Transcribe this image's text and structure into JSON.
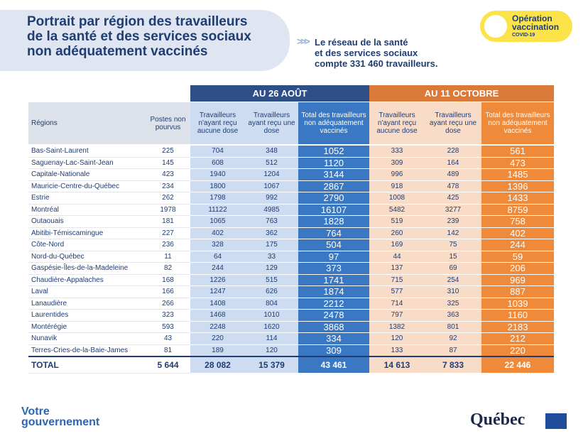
{
  "header": {
    "title": [
      "Portrait par région des travailleurs",
      "de la santé et des services sociaux",
      "non adéquatement vaccinés"
    ],
    "note": [
      "Le réseau de la santé",
      "et des services sociaux",
      "compte 331 460 travailleurs."
    ]
  },
  "badge": {
    "title": [
      "Opération",
      "vaccination"
    ],
    "subtitle": "COVID-19"
  },
  "table": {
    "groups": [
      "AU 26 AOÛT",
      "AU 11 OCTOBRE"
    ],
    "columns": [
      "Régions",
      "Postes non pourvus",
      "Travailleurs n'ayant reçu aucune dose",
      "Travailleurs ayant reçu une dose",
      "Total des travailleurs non adéquatement vaccinés",
      "Travailleurs n'ayant reçu aucune dose",
      "Travailleurs ayant reçu une dose",
      "Total des travailleurs non adéquatement vaccinés"
    ],
    "rows": [
      [
        "Bas-Saint-Laurent",
        225,
        704,
        348,
        1052,
        333,
        228,
        561
      ],
      [
        "Saguenay-Lac-Saint-Jean",
        145,
        608,
        512,
        1120,
        309,
        164,
        473
      ],
      [
        "Capitale-Nationale",
        423,
        1940,
        1204,
        3144,
        996,
        489,
        1485
      ],
      [
        "Mauricie-Centre-du-Québec",
        234,
        1800,
        1067,
        2867,
        918,
        478,
        1396
      ],
      [
        "Estrie",
        262,
        1798,
        992,
        2790,
        1008,
        425,
        1433
      ],
      [
        "Montréal",
        1978,
        11122,
        4985,
        16107,
        5482,
        3277,
        8759
      ],
      [
        "Outaouais",
        181,
        1065,
        763,
        1828,
        519,
        239,
        758
      ],
      [
        "Abitibi-Témiscamingue",
        227,
        402,
        362,
        764,
        260,
        142,
        402
      ],
      [
        "Côte-Nord",
        236,
        328,
        175,
        504,
        169,
        75,
        244
      ],
      [
        "Nord-du-Québec",
        11,
        64,
        33,
        97,
        44,
        15,
        59
      ],
      [
        "Gaspésie-Îles-de-la-Madeleine",
        82,
        244,
        129,
        373,
        137,
        69,
        206
      ],
      [
        "Chaudière-Appalaches",
        168,
        1226,
        515,
        1741,
        715,
        254,
        969
      ],
      [
        "Laval",
        166,
        1247,
        626,
        1874,
        577,
        310,
        887
      ],
      [
        "Lanaudière",
        266,
        1408,
        804,
        2212,
        714,
        325,
        1039
      ],
      [
        "Laurentides",
        323,
        1468,
        1010,
        2478,
        797,
        363,
        1160
      ],
      [
        "Montérégie",
        593,
        2248,
        1620,
        3868,
        1382,
        801,
        2183
      ],
      [
        "Nunavik",
        43,
        220,
        114,
        334,
        120,
        92,
        212
      ],
      [
        "Terres-Cries-de-la-Baie-James",
        81,
        189,
        120,
        309,
        133,
        87,
        220
      ]
    ],
    "total": [
      "TOTAL",
      "5 644",
      "28 082",
      "15 379",
      "43 461",
      "14 613",
      "7 833",
      "22 446"
    ]
  },
  "footer": {
    "left": [
      "Votre",
      "gouvernement"
    ],
    "right": "Québec"
  }
}
